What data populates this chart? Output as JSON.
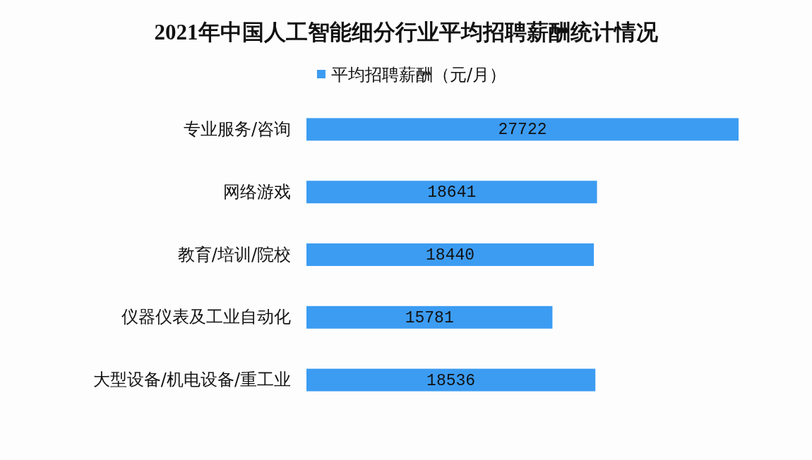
{
  "chart_data": {
    "type": "bar",
    "orientation": "horizontal",
    "title": "2021年中国人工智能细分行业平均招聘薪酬统计情况",
    "categories": [
      "专业服务/咨询",
      "网络游戏",
      "教育/培训/院校",
      "仪器仪表及工业自动化",
      "大型设备/机电设备/重工业"
    ],
    "series": [
      {
        "name": "平均招聘薪酬（元/月）",
        "color": "#3c9cf2",
        "values": [
          27722,
          18641,
          18440,
          15781,
          18536
        ]
      }
    ],
    "data_labels": true,
    "legend": "top"
  }
}
